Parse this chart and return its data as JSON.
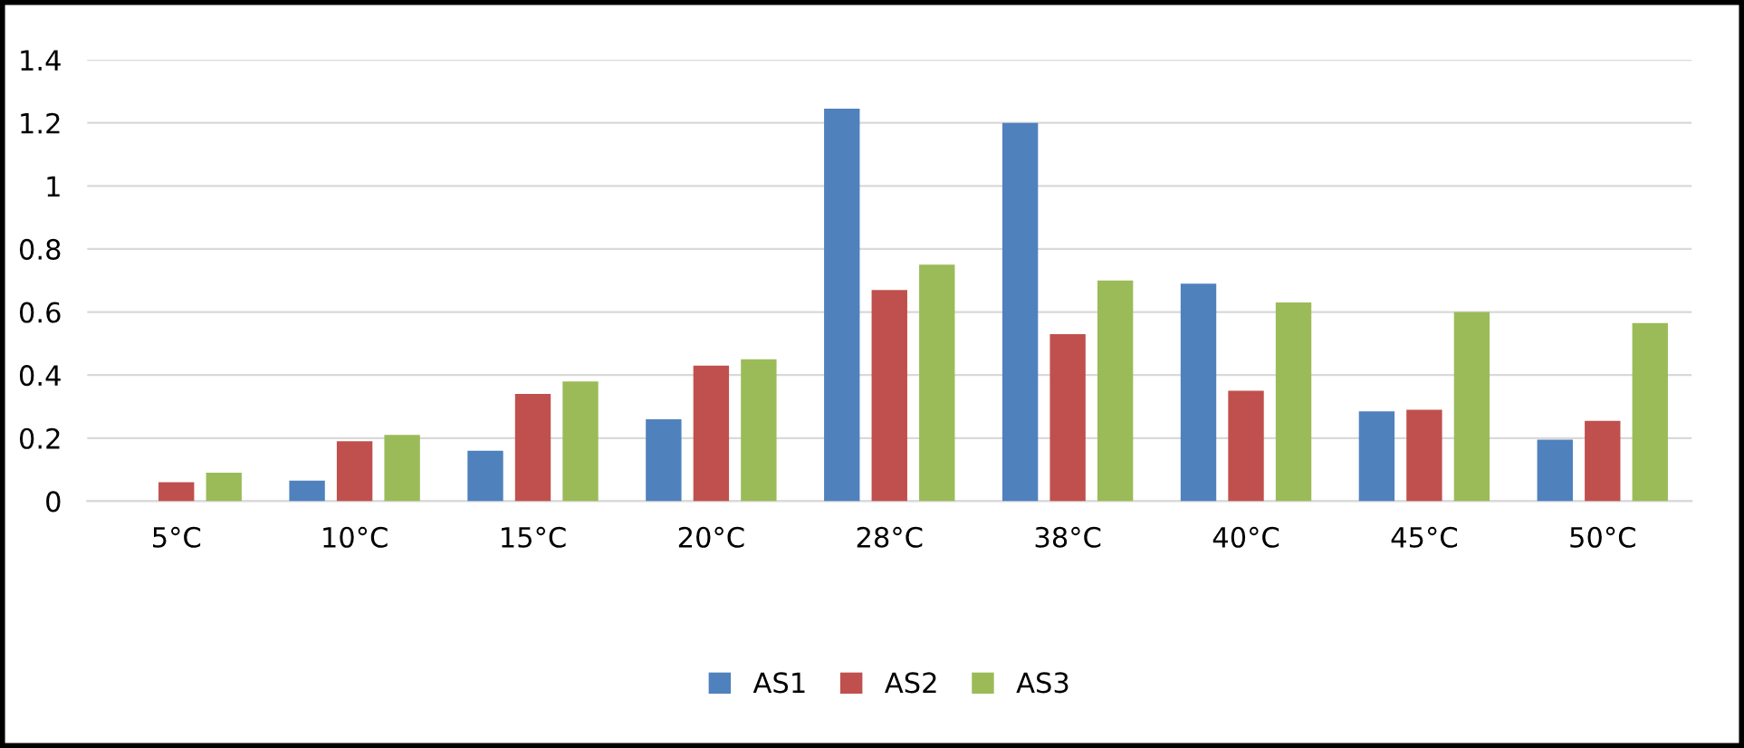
{
  "chart_data": {
    "type": "bar",
    "categories": [
      "5°C",
      "10°C",
      "15°C",
      "20°C",
      "28°C",
      "38°C",
      "40°C",
      "45°C",
      "50°C"
    ],
    "series": [
      {
        "name": "AS1",
        "color": "#4f81bd",
        "values": [
          0,
          0.065,
          0.16,
          0.26,
          1.245,
          1.2,
          0.69,
          0.285,
          0.195
        ]
      },
      {
        "name": "AS2",
        "color": "#c0504d",
        "values": [
          0.06,
          0.19,
          0.34,
          0.43,
          0.67,
          0.53,
          0.35,
          0.29,
          0.255
        ]
      },
      {
        "name": "AS3",
        "color": "#9bbb59",
        "values": [
          0.09,
          0.21,
          0.38,
          0.45,
          0.75,
          0.7,
          0.63,
          0.6,
          0.565
        ]
      }
    ],
    "ylim": [
      0,
      1.4
    ],
    "yticks": [
      0,
      0.2,
      0.4,
      0.6,
      0.8,
      1,
      1.2,
      1.4
    ],
    "grid": "y",
    "legend": "bottom"
  }
}
